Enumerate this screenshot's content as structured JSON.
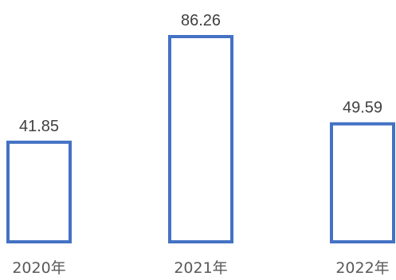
{
  "chart_data": {
    "type": "bar",
    "categories": [
      "2020年",
      "2021年",
      "2022年"
    ],
    "values": [
      41.85,
      86.26,
      49.59
    ],
    "value_labels": [
      "41.85",
      "86.26",
      "49.59"
    ],
    "title": "",
    "xlabel": "",
    "ylabel": "",
    "ylim": [
      0,
      86.26
    ],
    "grid": false,
    "legend": "none",
    "bar_fill": "#ffffff",
    "bar_stroke": "#4472c4",
    "label_color": "#404040",
    "tick_color": "#595959"
  }
}
